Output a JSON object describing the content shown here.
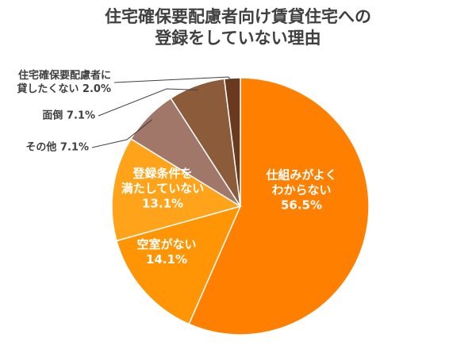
{
  "chart_data": {
    "type": "pie",
    "title_lines": [
      "住宅確保要配慮者向け賃貸住宅への",
      "登録をしていない理由"
    ],
    "unit": "%",
    "slices": [
      {
        "label_lines": [
          "仕組みがよく",
          "わからない"
        ],
        "value": 56.5,
        "color": "#FF7F00",
        "text_color": "#ffffff"
      },
      {
        "label_lines": [
          "空室がない"
        ],
        "value": 14.1,
        "color": "#FF9505",
        "text_color": "#ffffff"
      },
      {
        "label_lines": [
          "登録条件を",
          "満たしていない"
        ],
        "value": 13.1,
        "color": "#FFA31A",
        "text_color": "#ffffff"
      },
      {
        "label_lines": [
          "その他"
        ],
        "value": 7.1,
        "color": "#A1776A",
        "text_color": "#404040"
      },
      {
        "label_lines": [
          "面倒"
        ],
        "value": 7.1,
        "color": "#8C5B3A",
        "text_color": "#404040"
      },
      {
        "label_lines": [
          "住宅確保要配慮者に",
          "貸したくない"
        ],
        "value": 2.0,
        "color": "#6B3A1E",
        "text_color": "#404040"
      }
    ],
    "value_labels": [
      "56.5%",
      "14.1%",
      "13.1%",
      "7.1%",
      "7.1%",
      "2.0%"
    ]
  }
}
